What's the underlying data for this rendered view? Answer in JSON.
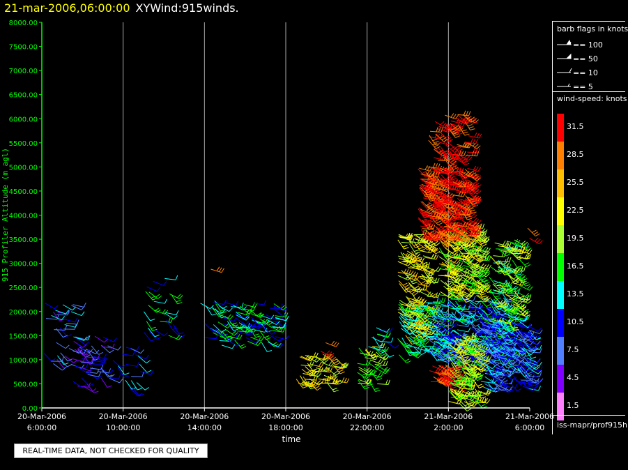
{
  "header": {
    "timestamp": "21-mar-2006,06:00:00",
    "plot_name": "XYWind:915winds."
  },
  "chart_data": {
    "type": "scatter",
    "subtype": "wind-barb time-height",
    "title": "XYWind:915winds.",
    "xlabel": "time",
    "ylabel": "915 Profiler Altitude (m agl)",
    "ylim": [
      0,
      8000
    ],
    "y_ticks": [
      "0.00",
      "500.00",
      "1000.00",
      "1500.00",
      "2000.00",
      "2500.00",
      "3000.00",
      "3500.00",
      "4000.00",
      "4500.00",
      "5000.00",
      "5500.00",
      "6000.00",
      "6500.00",
      "7000.00",
      "7500.00",
      "8000.00"
    ],
    "x_ticks": [
      {
        "date": "20-Mar-2006",
        "time": "6:00:00"
      },
      {
        "date": "20-Mar-2006",
        "time": "10:00:00"
      },
      {
        "date": "20-Mar-2006",
        "time": "14:00:00"
      },
      {
        "date": "20-Mar-2006",
        "time": "18:00:00"
      },
      {
        "date": "20-Mar-2006",
        "time": "22:00:00"
      },
      {
        "date": "21-Mar-2006",
        "time": "2:00:00"
      },
      {
        "date": "21-Mar-2006",
        "time": "6:00:00"
      }
    ],
    "xlim_hours": [
      0,
      24
    ],
    "vertical_grid": true,
    "wind_regions": [
      {
        "t": [
          0.0,
          1.8
        ],
        "z": [
          700,
          2200
        ],
        "speed": [
          4,
          15
        ],
        "density": 0.35
      },
      {
        "t": [
          1.5,
          3.5
        ],
        "z": [
          450,
          1500
        ],
        "speed": [
          4,
          12
        ],
        "density": 0.55
      },
      {
        "t": [
          3.5,
          5.0
        ],
        "z": [
          400,
          1300
        ],
        "speed": [
          8,
          16
        ],
        "density": 0.35
      },
      {
        "t": [
          5.0,
          6.5
        ],
        "z": [
          1500,
          2700
        ],
        "speed": [
          9,
          18
        ],
        "density": 0.35
      },
      {
        "t": [
          7.5,
          8.5
        ],
        "z": [
          1950,
          2250
        ],
        "speed": [
          12,
          18
        ],
        "density": 0.35
      },
      {
        "t": [
          8.0,
          11.5
        ],
        "z": [
          1300,
          2200
        ],
        "speed": [
          9,
          17
        ],
        "density": 0.8
      },
      {
        "t": [
          8.0,
          8.4
        ],
        "z": [
          2700,
          2900
        ],
        "speed": [
          28,
          33
        ],
        "density": 0.35
      },
      {
        "t": [
          12.5,
          14.5
        ],
        "z": [
          500,
          1100
        ],
        "speed": [
          18,
          27
        ],
        "density": 1.0
      },
      {
        "t": [
          13.5,
          14.2
        ],
        "z": [
          1000,
          1400
        ],
        "speed": [
          27,
          33
        ],
        "density": 0.3
      },
      {
        "t": [
          15.5,
          16.5
        ],
        "z": [
          500,
          1300
        ],
        "speed": [
          15,
          22
        ],
        "density": 1.0
      },
      {
        "t": [
          16.0,
          17.0
        ],
        "z": [
          1200,
          1700
        ],
        "speed": [
          10,
          16
        ],
        "density": 0.6
      },
      {
        "t": [
          17.5,
          19.0
        ],
        "z": [
          1500,
          3600
        ],
        "speed": [
          18,
          26
        ],
        "density": 1.2
      },
      {
        "t": [
          17.5,
          19.5
        ],
        "z": [
          1100,
          2200
        ],
        "speed": [
          12,
          18
        ],
        "density": 1.0
      },
      {
        "t": [
          19.0,
          20.5
        ],
        "z": [
          500,
          900
        ],
        "speed": [
          28,
          34
        ],
        "density": 1.6
      },
      {
        "t": [
          19.0,
          23.0
        ],
        "z": [
          1000,
          2300
        ],
        "speed": [
          7,
          16
        ],
        "density": 1.6
      },
      {
        "t": [
          19.5,
          21.5
        ],
        "z": [
          2300,
          3800
        ],
        "speed": [
          16,
          25
        ],
        "density": 1.6
      },
      {
        "t": [
          18.5,
          21.0
        ],
        "z": [
          3500,
          5000
        ],
        "speed": [
          28,
          34
        ],
        "density": 1.7
      },
      {
        "t": [
          19.0,
          21.0
        ],
        "z": [
          5000,
          6100
        ],
        "speed": [
          28,
          34
        ],
        "density": 0.7
      },
      {
        "t": [
          20.0,
          21.5
        ],
        "z": [
          100,
          1500
        ],
        "speed": [
          16,
          24
        ],
        "density": 1.6
      },
      {
        "t": [
          21.5,
          24.0
        ],
        "z": [
          400,
          1800
        ],
        "speed": [
          6,
          14
        ],
        "density": 1.6
      },
      {
        "t": [
          22.0,
          23.5
        ],
        "z": [
          1800,
          3500
        ],
        "speed": [
          13,
          24
        ],
        "density": 1.2
      },
      {
        "t": [
          23.0,
          24.0
        ],
        "z": [
          1200,
          2000
        ],
        "speed": [
          10,
          15
        ],
        "density": 0.6
      },
      {
        "t": [
          23.7,
          24.0
        ],
        "z": [
          3400,
          3800
        ],
        "speed": [
          28,
          33
        ],
        "density": 0.4
      }
    ]
  },
  "legend": {
    "barb_title": "barb flags in knots",
    "barb_items": [
      "== 100",
      "== 50",
      "== 10",
      "== 5"
    ],
    "speed_title": "wind-speed: knots",
    "speed_bins": [
      {
        "label": "31.5",
        "color": "#ff0000"
      },
      {
        "label": "28.5",
        "color": "#ff8000"
      },
      {
        "label": "25.5",
        "color": "#ffbf00"
      },
      {
        "label": "22.5",
        "color": "#ffff00"
      },
      {
        "label": "19.5",
        "color": "#aaff33"
      },
      {
        "label": "16.5",
        "color": "#00ff00"
      },
      {
        "label": "13.5",
        "color": "#00ffff"
      },
      {
        "label": "10.5",
        "color": "#0000ff"
      },
      {
        "label": "7.5",
        "color": "#5080ff"
      },
      {
        "label": "4.5",
        "color": "#8000ff"
      },
      {
        "label": "1.5",
        "color": "#ff80ff"
      }
    ],
    "source": "iss-mapr/prof915h"
  },
  "footer": {
    "quality_note": "REAL-TIME DATA, NOT CHECKED FOR QUALITY"
  },
  "colors": {
    "axis": "#00ff00",
    "grid": "#aaaaaa",
    "background": "#000000",
    "timestamp": "#ffff00"
  }
}
